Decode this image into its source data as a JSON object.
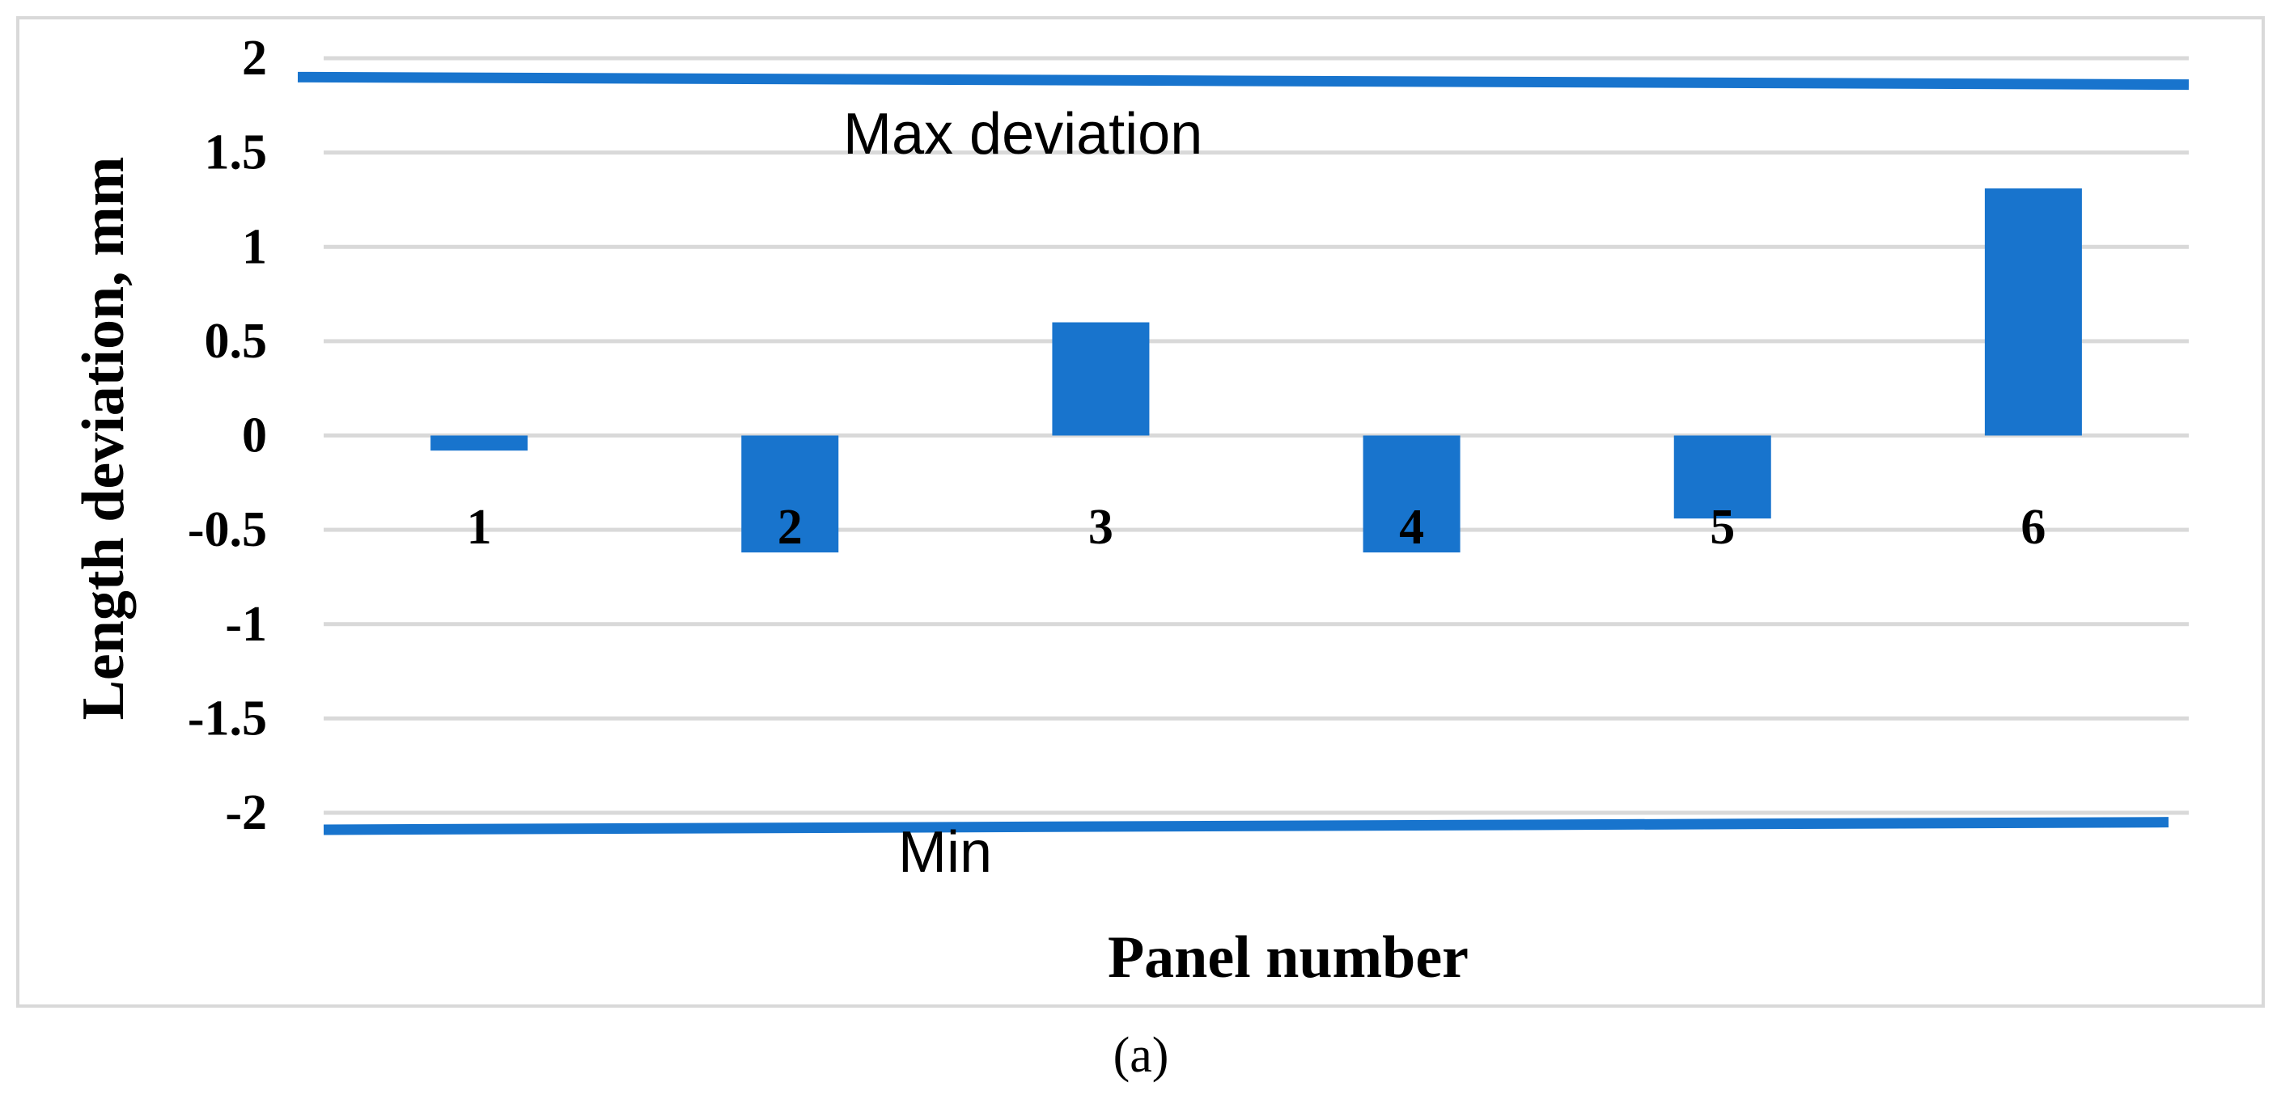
{
  "chart_data": {
    "type": "bar",
    "categories": [
      "1",
      "2",
      "3",
      "4",
      "5",
      "6"
    ],
    "values": [
      -0.08,
      -0.62,
      0.6,
      -0.62,
      -0.44,
      1.31
    ],
    "ylim": [
      -2,
      2
    ],
    "yticks": [
      "2",
      "1.5",
      "1",
      "0.5",
      "0",
      "-0.5",
      "-1",
      "-1.5",
      "-2"
    ],
    "ytick_values": [
      2,
      1.5,
      1,
      0.5,
      0,
      -0.5,
      -1,
      -1.5,
      -2
    ],
    "xlabel": "Panel number",
    "ylabel": "Length deviation, mm",
    "grid": true,
    "annotations": {
      "max": "Max deviation",
      "min": "Min"
    },
    "limit_lines": {
      "max": [
        1.9,
        1.86
      ],
      "min": [
        -2.09,
        -2.05
      ]
    },
    "bar_color": "#1874CD",
    "limit_color": "#1874CD"
  },
  "caption": "(a)"
}
